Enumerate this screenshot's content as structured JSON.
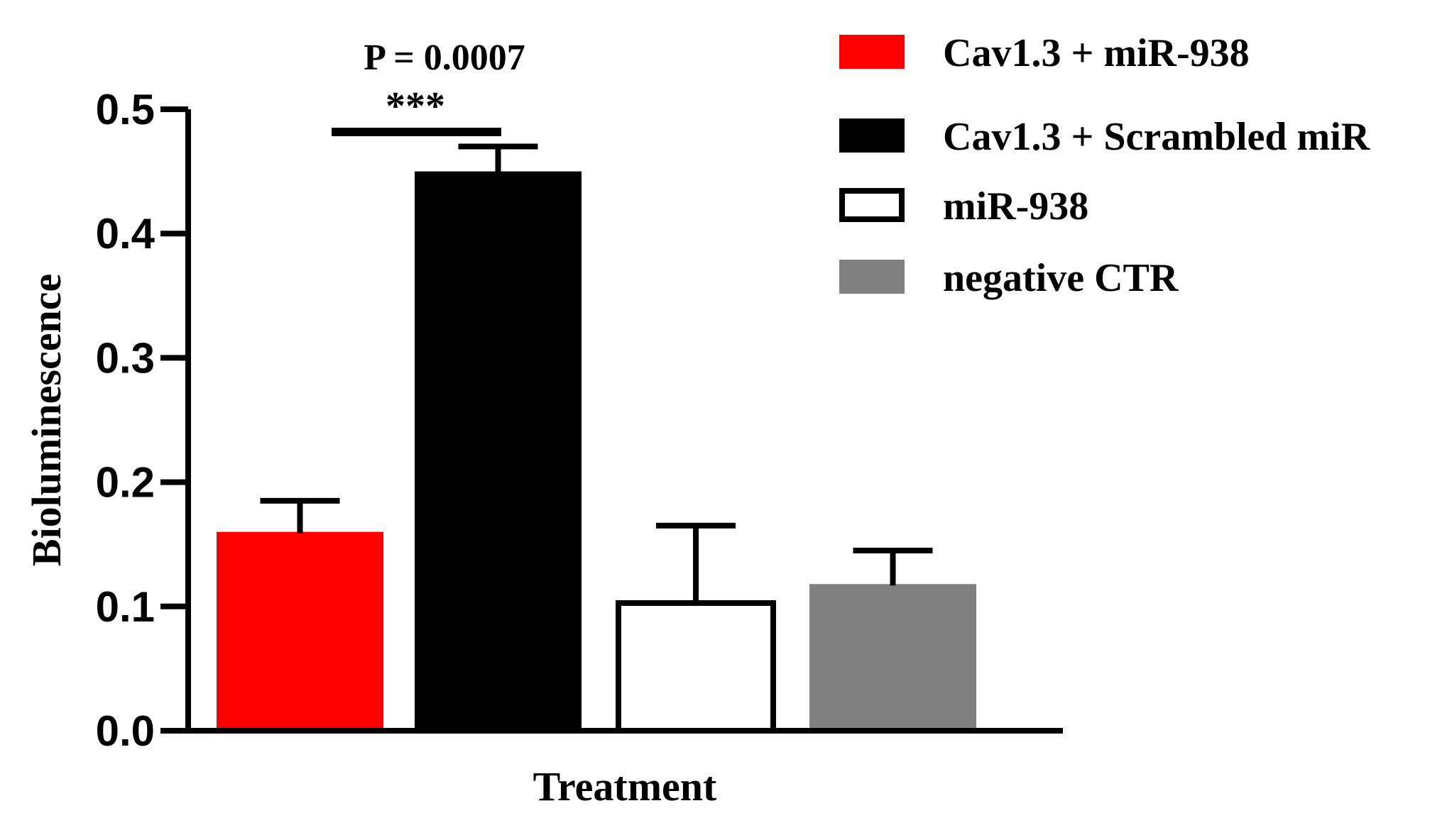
{
  "chart_data": {
    "type": "bar",
    "title": "",
    "xlabel": "Treatment",
    "ylabel": "Bioluminescence",
    "ylim": [
      0,
      0.5
    ],
    "yticks": [
      "0.0",
      "0.1",
      "0.2",
      "0.3",
      "0.4",
      "0.5"
    ],
    "grid": false,
    "legend_position": "top-right",
    "series": [
      {
        "name": "Cav1.3 + miR-938",
        "value": 0.16,
        "error": 0.025,
        "color": "#ff0000",
        "style": "filled"
      },
      {
        "name": "Cav1.3 + Scrambled miR",
        "value": 0.45,
        "error": 0.02,
        "color": "#000000",
        "style": "filled"
      },
      {
        "name": "miR-938",
        "value": 0.105,
        "error": 0.06,
        "color": "#ffffff",
        "style": "outline"
      },
      {
        "name": "negative CTR",
        "value": 0.118,
        "error": 0.027,
        "color": "#808080",
        "style": "filled"
      }
    ],
    "annotations": {
      "p_value": "P = 0.0007",
      "significance": "***"
    }
  }
}
